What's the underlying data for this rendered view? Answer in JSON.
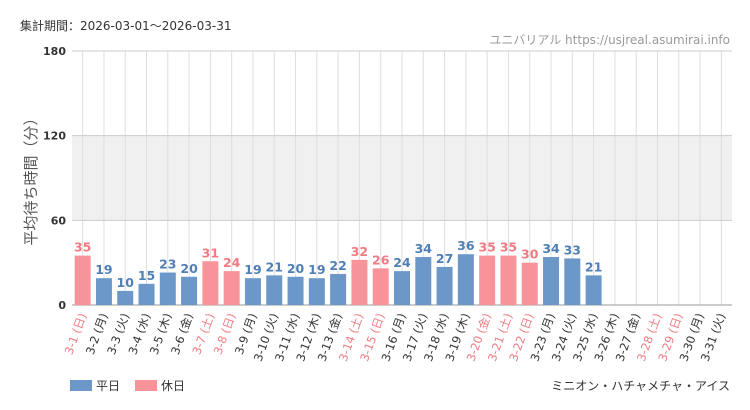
{
  "header": {
    "period_label": "集計期間：2026-03-01～2026-03-31",
    "site_label": "ユニバリアル  https://usjreal.asumirai.info"
  },
  "footer": {
    "attraction": "ミニオン・ハチャメチャ・アイス"
  },
  "colors": {
    "weekday": "#6b98c8",
    "holiday": "#f7949a",
    "weekday_text": "#4f7fb4",
    "holiday_text": "#f07b83",
    "tick_weekday": "#333333",
    "tick_holiday": "#f07b83",
    "band": "#f0f0f0",
    "grid": "#dedede"
  },
  "chart_data": {
    "type": "bar",
    "title": "",
    "xlabel": "",
    "ylabel": "平均待ち時間（分）",
    "ylim": [
      0,
      180
    ],
    "yticks": [
      0,
      60,
      120,
      180
    ],
    "shaded_band": [
      60,
      120
    ],
    "legend": [
      {
        "name": "平日",
        "kind": "weekday"
      },
      {
        "name": "休日",
        "kind": "holiday"
      }
    ],
    "categories": [
      "3-1 (日)",
      "3-2 (月)",
      "3-3 (火)",
      "3-4 (水)",
      "3-5 (木)",
      "3-6 (金)",
      "3-7 (土)",
      "3-8 (日)",
      "3-9 (月)",
      "3-10 (火)",
      "3-11 (水)",
      "3-12 (木)",
      "3-13 (金)",
      "3-14 (土)",
      "3-15 (日)",
      "3-16 (月)",
      "3-17 (火)",
      "3-18 (水)",
      "3-19 (木)",
      "3-20 (金)",
      "3-21 (土)",
      "3-22 (日)",
      "3-23 (月)",
      "3-24 (火)",
      "3-25 (水)",
      "3-26 (木)",
      "3-27 (金)",
      "3-28 (土)",
      "3-29 (日)",
      "3-30 (月)",
      "3-31 (火)"
    ],
    "values": [
      35,
      19,
      10,
      15,
      23,
      20,
      31,
      24,
      19,
      21,
      20,
      19,
      22,
      32,
      26,
      24,
      34,
      27,
      36,
      35,
      35,
      30,
      34,
      33,
      21,
      null,
      null,
      null,
      null,
      null,
      null
    ],
    "holiday": [
      true,
      false,
      false,
      false,
      false,
      false,
      true,
      true,
      false,
      false,
      false,
      false,
      false,
      true,
      true,
      false,
      false,
      false,
      false,
      true,
      true,
      true,
      false,
      false,
      false,
      false,
      false,
      true,
      true,
      false,
      false
    ]
  }
}
